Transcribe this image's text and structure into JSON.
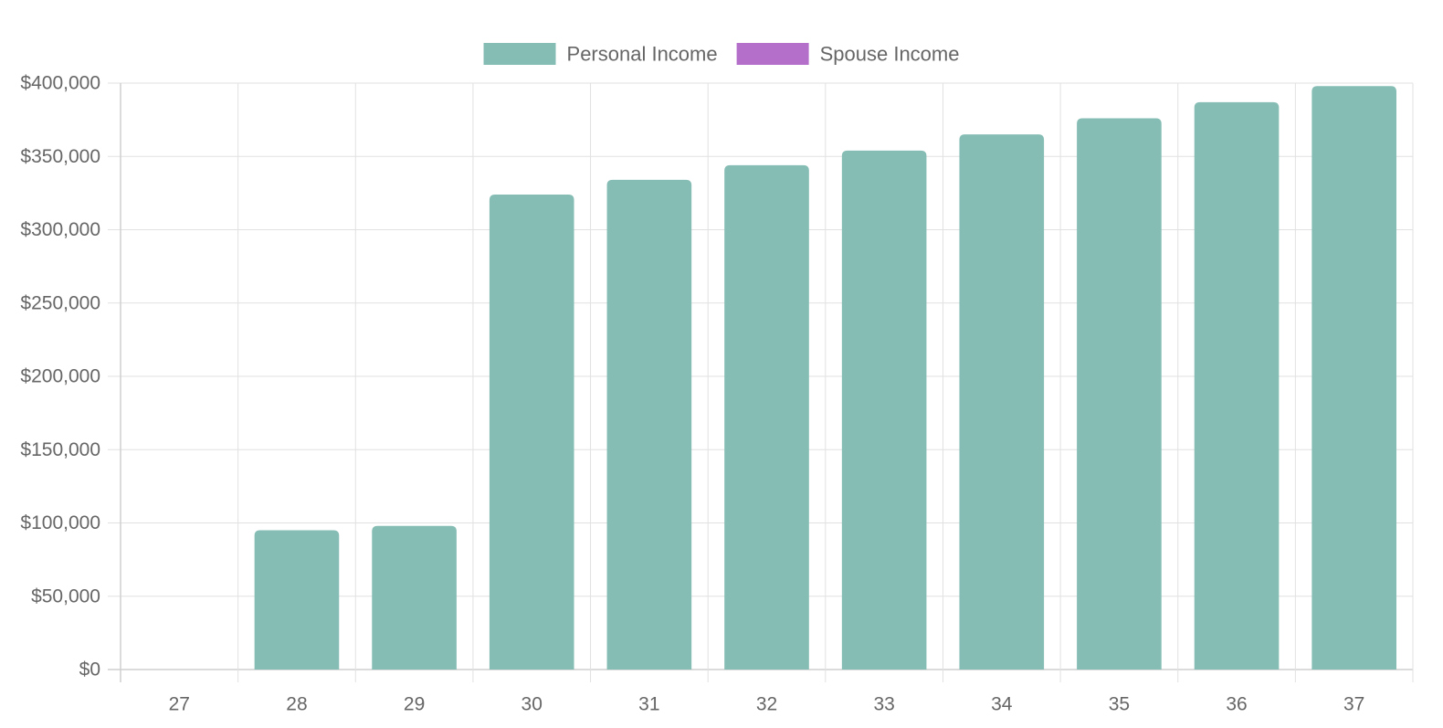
{
  "chart_data": {
    "type": "bar",
    "title": "",
    "xlabel": "",
    "ylabel": "",
    "categories": [
      "27",
      "28",
      "29",
      "30",
      "31",
      "32",
      "33",
      "34",
      "35",
      "36",
      "37"
    ],
    "series": [
      {
        "name": "Personal Income",
        "color": "#85bdb5",
        "values": [
          0,
          95000,
          98000,
          324000,
          334000,
          344000,
          354000,
          365000,
          376000,
          387000,
          398000
        ]
      },
      {
        "name": "Spouse Income",
        "color": "#b36fc9",
        "values": [
          0,
          0,
          0,
          0,
          0,
          0,
          0,
          0,
          0,
          0,
          0
        ]
      }
    ],
    "ylim": [
      0,
      400000
    ],
    "yticks": [
      0,
      50000,
      100000,
      150000,
      200000,
      250000,
      300000,
      350000,
      400000
    ],
    "ytick_labels": [
      "$0",
      "$50,000",
      "$100,000",
      "$150,000",
      "$200,000",
      "$250,000",
      "$300,000",
      "$350,000",
      "$400,000"
    ],
    "grid": true,
    "legend_position": "top-center"
  }
}
